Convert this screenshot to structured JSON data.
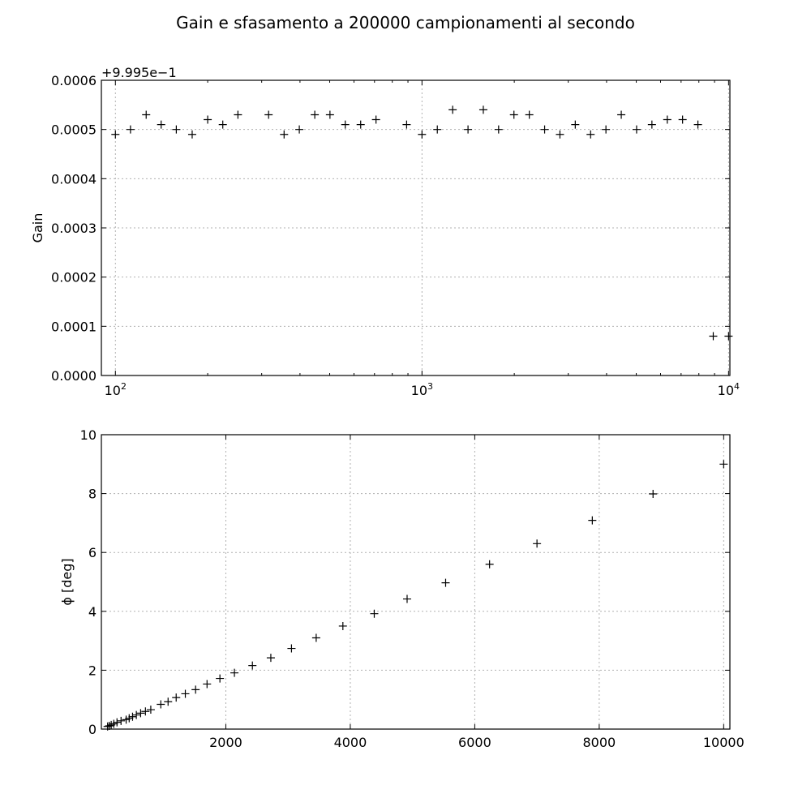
{
  "figure": {
    "title": "Gain e sfasamento a 200000 campionamenti al secondo"
  },
  "chart_data": [
    {
      "type": "scatter",
      "title": "",
      "xlabel": "",
      "ylabel": "Gain",
      "offset_label": "+9.995e−1",
      "x_scale": "log",
      "xlim": [
        90,
        10100
      ],
      "ylim": [
        0,
        0.0006
      ],
      "x_ticks": [
        100,
        1000,
        10000
      ],
      "x_tick_labels": [
        {
          "base": "10",
          "exp": "2"
        },
        {
          "base": "10",
          "exp": "3"
        },
        {
          "base": "10",
          "exp": "4"
        }
      ],
      "y_ticks": [
        0,
        0.0001,
        0.0002,
        0.0003,
        0.0004,
        0.0005,
        0.0006
      ],
      "y_tick_labels": [
        "0.0000",
        "0.0001",
        "0.0002",
        "0.0003",
        "0.0004",
        "0.0005",
        "0.0006"
      ],
      "grid": true,
      "marker": "+",
      "series": [
        {
          "x": [
            100,
            112,
            126,
            141,
            158,
            178,
            200,
            224,
            251,
            316,
            355,
            398,
            447,
            501,
            562,
            631,
            708,
            891,
            1000,
            1122,
            1259,
            1413,
            1585,
            1778,
            1995,
            2239,
            2512,
            2818,
            3162,
            3548,
            3981,
            4467,
            5012,
            5623,
            6310,
            7079,
            7943,
            8913,
            10000
          ],
          "y": [
            0.00049,
            0.0005,
            0.00053,
            0.00051,
            0.0005,
            0.00049,
            0.00052,
            0.00051,
            0.00053,
            0.00053,
            0.00049,
            0.0005,
            0.00053,
            0.00053,
            0.00051,
            0.00051,
            0.00052,
            0.00051,
            0.00049,
            0.0005,
            0.00054,
            0.0005,
            0.00054,
            0.0005,
            0.00053,
            0.00053,
            0.0005,
            0.00049,
            0.00051,
            0.00049,
            0.0005,
            0.00053,
            0.0005,
            0.00051,
            0.00052,
            0.00052,
            0.00051,
            8e-05,
            8e-05
          ]
        }
      ]
    },
    {
      "type": "scatter",
      "title": "",
      "xlabel": "",
      "ylabel": "ϕ [deg]",
      "x_scale": "linear",
      "xlim": [
        0,
        10100
      ],
      "ylim": [
        0,
        10
      ],
      "x_ticks": [
        2000,
        4000,
        6000,
        8000,
        10000
      ],
      "x_tick_labels": [
        "2000",
        "4000",
        "6000",
        "8000",
        "10000"
      ],
      "y_ticks": [
        0,
        2,
        4,
        6,
        8,
        10
      ],
      "y_tick_labels": [
        "0",
        "2",
        "4",
        "6",
        "8",
        "10"
      ],
      "grid": true,
      "marker": "+",
      "series": [
        {
          "x": [
            100,
            126,
            158,
            200,
            251,
            316,
            398,
            447,
            501,
            562,
            631,
            708,
            794,
            955,
            1072,
            1202,
            1349,
            1514,
            1698,
            1905,
            2138,
            2427,
            2723,
            3055,
            3452,
            3881,
            4385,
            4913,
            5532,
            6238,
            7000,
            7889,
            8865,
            10000
          ],
          "y": [
            0.09,
            0.11,
            0.14,
            0.18,
            0.23,
            0.28,
            0.32,
            0.37,
            0.42,
            0.48,
            0.54,
            0.6,
            0.66,
            0.84,
            0.93,
            1.07,
            1.2,
            1.34,
            1.53,
            1.72,
            1.91,
            2.16,
            2.42,
            2.74,
            3.1,
            3.5,
            3.92,
            4.42,
            4.97,
            5.6,
            6.3,
            7.09,
            7.99,
            9.0
          ]
        }
      ]
    }
  ]
}
